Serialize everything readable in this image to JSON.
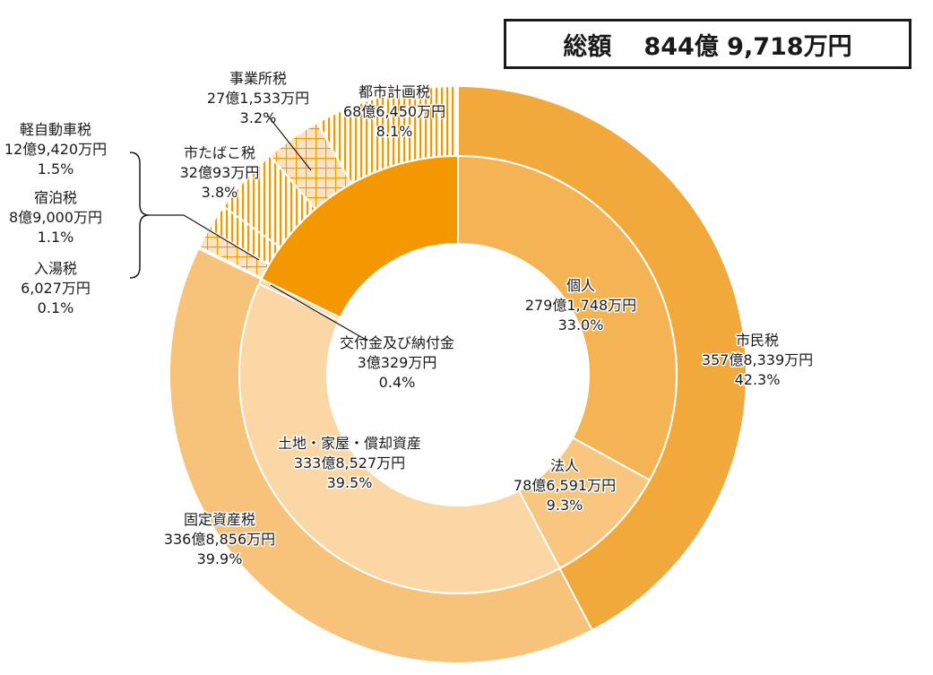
{
  "total": {
    "label": "総額",
    "amount": "844億 9,718万円"
  },
  "chart_data": {
    "type": "donut",
    "title": "総額 844億 9,718万円",
    "outer_ring": [
      {
        "name": "市民税",
        "amount": "357億8,339万円",
        "percent": 42.3,
        "color": "#f2a93b",
        "pattern": "solid"
      },
      {
        "name": "固定資産税",
        "amount": "336億8,856万円",
        "percent": 39.9,
        "color": "#f7c37a",
        "pattern": "solid"
      },
      {
        "name": "入湯税",
        "amount": "6,027万円",
        "percent": 0.1,
        "color": "#f39800",
        "pattern": "solid"
      },
      {
        "name": "宿泊税",
        "amount": "8億9,000万円",
        "percent": 1.1,
        "color": "#f5b55a",
        "pattern": "crosshatch"
      },
      {
        "name": "軽自動車税",
        "amount": "12億9,420万円",
        "percent": 1.5,
        "color": "#f39800",
        "pattern": "vertical"
      },
      {
        "name": "市たばこ税",
        "amount": "32億93万円",
        "percent": 3.8,
        "color": "#f39800",
        "pattern": "vertical"
      },
      {
        "name": "事業所税",
        "amount": "27億1,533万円",
        "percent": 3.2,
        "color": "#f5b55a",
        "pattern": "crosshatch"
      },
      {
        "name": "都市計画税",
        "amount": "68億6,450万円",
        "percent": 8.1,
        "color": "#f39800",
        "pattern": "vertical"
      }
    ],
    "inner_ring": [
      {
        "name": "個人",
        "amount": "279億1,748万円",
        "percent": 33.0,
        "color": "#f5b454"
      },
      {
        "name": "法人",
        "amount": "78億6,591万円",
        "percent": 9.3,
        "color": "#f8c67e"
      },
      {
        "name": "土地・家屋・償却資産",
        "amount": "333億8,527万円",
        "percent": 39.5,
        "color": "#fbd7a5"
      },
      {
        "name": "交付金及び納付金",
        "amount": "3億329万円",
        "percent": 0.4,
        "color": "#fbd7a5"
      },
      {
        "name": "",
        "amount": "",
        "percent": 17.8,
        "color": "#f39800"
      }
    ]
  }
}
